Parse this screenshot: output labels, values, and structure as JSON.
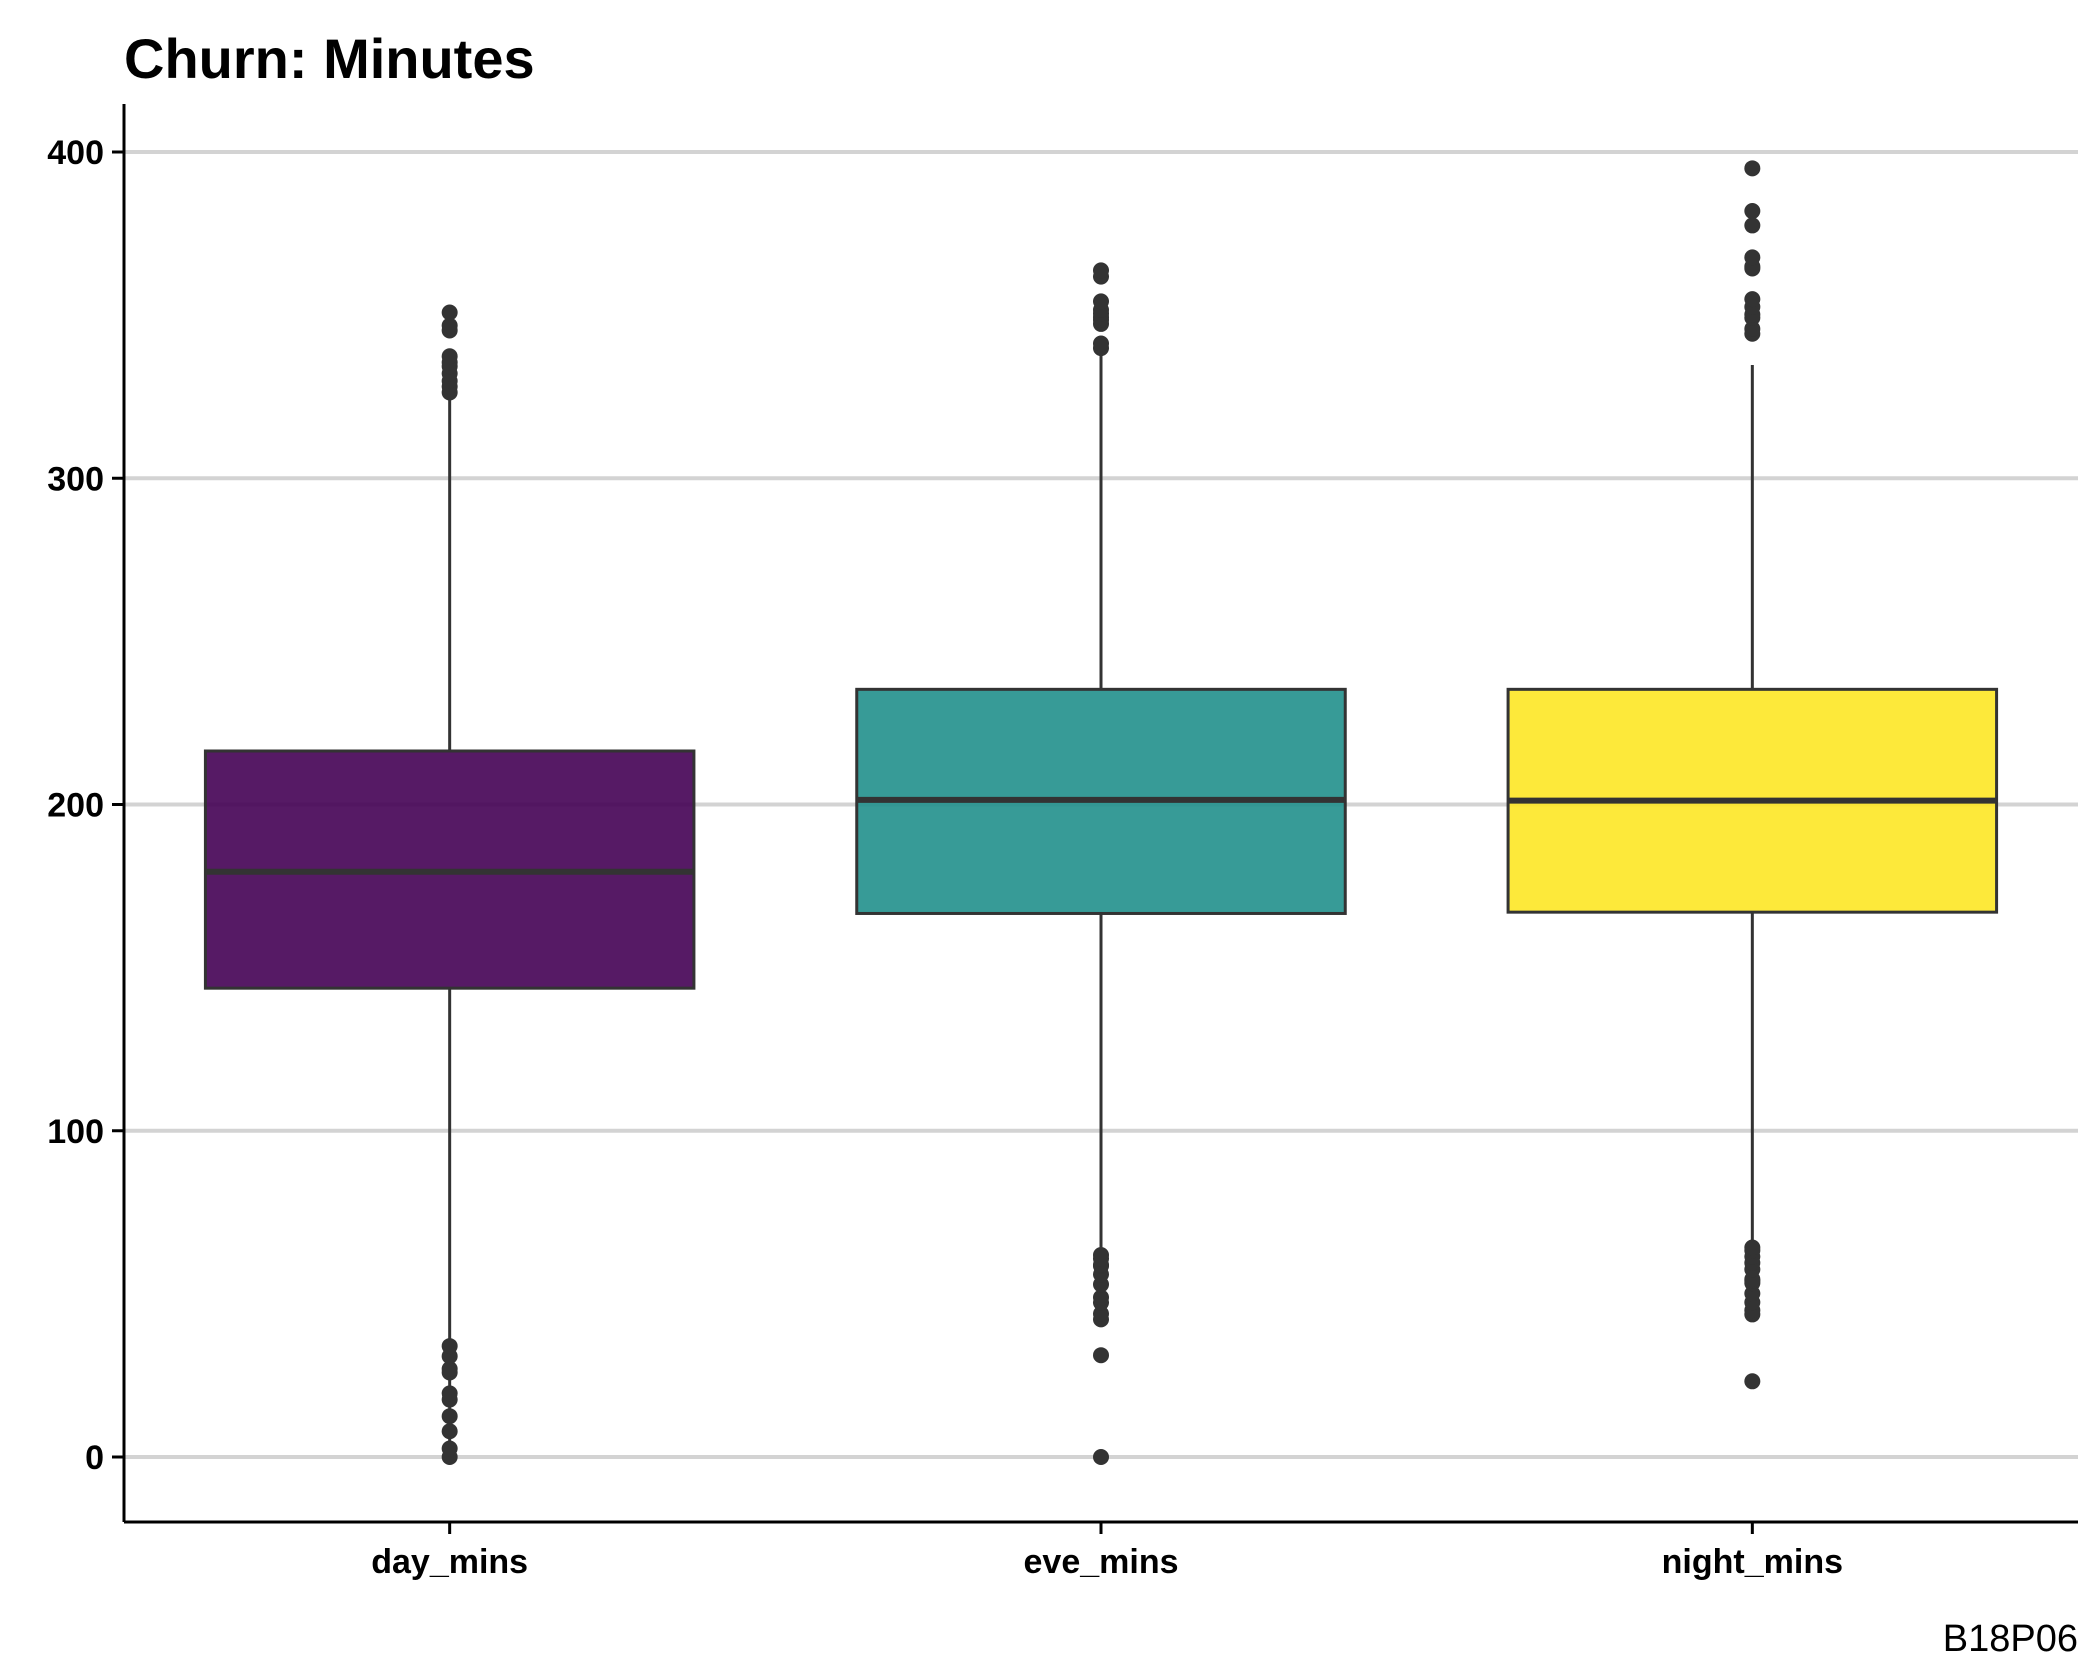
{
  "chart_data": {
    "type": "boxplot",
    "title": "Churn: Minutes",
    "caption": "B18P06",
    "xlabel": "",
    "ylabel": "",
    "ylim": [
      -20,
      415
    ],
    "yticks": [
      0,
      100,
      200,
      300,
      400
    ],
    "grid": {
      "horizontal": true,
      "vertical": false
    },
    "colors": {
      "grid": "#d3d3d3",
      "axis": "#000000",
      "line": "#333333"
    },
    "categories": [
      "day_mins",
      "eve_mins",
      "night_mins"
    ],
    "series": [
      {
        "category": "day_mins",
        "fill": "#440154",
        "whisker_low": 0,
        "q1": 143.7,
        "median": 179.4,
        "q3": 216.4,
        "whisker_high": 325.5,
        "outliers": [
          0,
          2.6,
          7.9,
          12.5,
          17.6,
          19.5,
          25.9,
          27.0,
          30.9,
          34.0,
          326.3,
          328.1,
          329.8,
          332.1,
          334.3,
          335.5,
          337.4,
          345.3,
          346.8,
          350.8
        ]
      },
      {
        "category": "eve_mins",
        "fill": "#21908c",
        "whisker_low": 64.3,
        "q1": 166.6,
        "median": 201.4,
        "q3": 235.3,
        "whisker_high": 338.4,
        "outliers": [
          0,
          31.2,
          42.2,
          43.9,
          47.3,
          48.9,
          52.9,
          56.0,
          58.6,
          58.9,
          60.8,
          61.9,
          339.9,
          341.3,
          347.3,
          348.5,
          349.4,
          350.5,
          351.6,
          354.2,
          361.8,
          363.7
        ]
      },
      {
        "category": "night_mins",
        "fill": "#fde725",
        "whisker_low": 65.7,
        "q1": 167.0,
        "median": 201.2,
        "q3": 235.3,
        "whisker_high": 334.7,
        "outliers": [
          23.2,
          43.7,
          45.0,
          47.4,
          50.1,
          53.3,
          54.0,
          54.5,
          57.5,
          59.5,
          61.4,
          63.3,
          64.2,
          344.3,
          345.8,
          349.2,
          350.2,
          352.5,
          354.9,
          364.3,
          364.9,
          367.7,
          377.5,
          381.9,
          395.0
        ]
      }
    ]
  }
}
